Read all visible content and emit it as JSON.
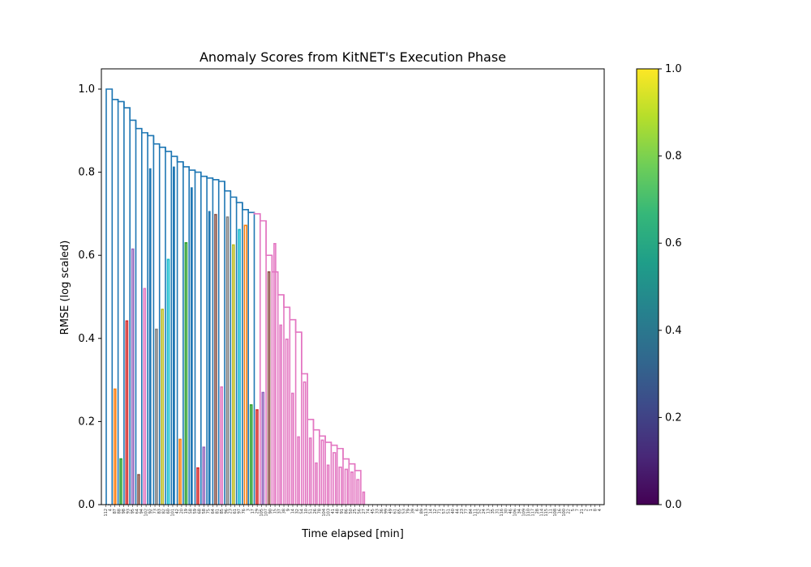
{
  "chart_data": {
    "type": "dendrogram",
    "title": "Anomaly Scores from KitNET's Execution Phase",
    "xlabel": "Time elapsed [min]",
    "ylabel": "RMSE (log scaled)",
    "ylim": [
      0,
      1.05
    ],
    "yticks": [
      "0.0",
      "0.2",
      "0.4",
      "0.6",
      "0.8",
      "1.0"
    ],
    "xtick_labels": [
      "112",
      "4",
      "87",
      "88",
      "98",
      "93",
      "95",
      "64",
      "94",
      "102",
      "92",
      "73",
      "83",
      "82",
      "60",
      "101",
      "42",
      "20",
      "19",
      "58",
      "59",
      "68",
      "58",
      "75",
      "64",
      "81",
      "85",
      "96",
      "23",
      "61",
      "97",
      "76",
      "3",
      "17",
      "29",
      "105",
      "107",
      "90",
      "15",
      "37",
      "38",
      "9",
      "14",
      "32",
      "54",
      "10",
      "51",
      "26",
      "78",
      "104",
      "103",
      "41",
      "48",
      "91",
      "86",
      "50",
      "25",
      "56",
      "27",
      "74",
      "45",
      "33",
      "36",
      "99",
      "49",
      "61",
      "65",
      "53",
      "79",
      "39",
      "6",
      "89",
      "113",
      "14",
      "12",
      "71",
      "57",
      "51",
      "40",
      "44",
      "23",
      "77",
      "84",
      "111",
      "52",
      "24",
      "13",
      "35",
      "31",
      "116",
      "30",
      "46",
      "106",
      "34",
      "109",
      "110",
      "117",
      "28",
      "114",
      "115",
      "11",
      "108",
      "16",
      "100",
      "22",
      "5",
      "7",
      "21",
      "2",
      "1",
      "8",
      "4"
    ],
    "colorbar": {
      "ticks": [
        "0.0",
        "0.2",
        "0.4",
        "0.6",
        "0.8",
        "1.0"
      ],
      "colors": [
        "#440154",
        "#482878",
        "#3e4989",
        "#31688e",
        "#26828e",
        "#1f9e89",
        "#35b779",
        "#6ece58",
        "#b5de2b",
        "#fde725"
      ]
    },
    "colors": {
      "trunk": "#1f77b4",
      "orange": "#ff7f0e",
      "green": "#2ca02c",
      "red": "#d62728",
      "purple": "#9467bd",
      "brown": "#8c564b",
      "pink": "#e377c2",
      "gray": "#7f7f7f",
      "olive": "#bcbd22",
      "cyan": "#17becf"
    },
    "merges": [
      {
        "x1": 0,
        "x2": 1,
        "h": 1.0,
        "c": "trunk"
      },
      {
        "x1": 1,
        "x2": 2,
        "h": 0.975,
        "c": "trunk"
      },
      {
        "x1": 2,
        "x2": 3,
        "h": 0.97,
        "c": "trunk"
      },
      {
        "x1": 3,
        "x2": 4,
        "h": 0.955,
        "c": "trunk"
      },
      {
        "x1": 4,
        "x2": 5,
        "h": 0.925,
        "c": "trunk"
      },
      {
        "x1": 5,
        "x2": 6,
        "h": 0.905,
        "c": "trunk"
      },
      {
        "x1": 6,
        "x2": 7,
        "h": 0.895,
        "c": "trunk"
      },
      {
        "x1": 7,
        "x2": 8,
        "h": 0.888,
        "c": "trunk"
      },
      {
        "x1": 8,
        "x2": 9,
        "h": 0.868,
        "c": "trunk"
      },
      {
        "x1": 9,
        "x2": 10,
        "h": 0.86,
        "c": "trunk"
      },
      {
        "x1": 10,
        "x2": 11,
        "h": 0.85,
        "c": "trunk"
      },
      {
        "x1": 11,
        "x2": 12,
        "h": 0.838,
        "c": "trunk"
      },
      {
        "x1": 12,
        "x2": 13,
        "h": 0.825,
        "c": "trunk"
      },
      {
        "x1": 13,
        "x2": 14,
        "h": 0.813,
        "c": "trunk"
      },
      {
        "x1": 14,
        "x2": 15,
        "h": 0.805,
        "c": "trunk"
      },
      {
        "x1": 15,
        "x2": 16,
        "h": 0.8,
        "c": "trunk"
      },
      {
        "x1": 16,
        "x2": 17,
        "h": 0.79,
        "c": "trunk"
      },
      {
        "x1": 17,
        "x2": 18,
        "h": 0.786,
        "c": "trunk"
      },
      {
        "x1": 18,
        "x2": 19,
        "h": 0.782,
        "c": "trunk"
      },
      {
        "x1": 19,
        "x2": 20,
        "h": 0.778,
        "c": "trunk"
      },
      {
        "x1": 20,
        "x2": 21,
        "h": 0.755,
        "c": "trunk"
      },
      {
        "x1": 21,
        "x2": 22,
        "h": 0.74,
        "c": "trunk"
      },
      {
        "x1": 22,
        "x2": 23,
        "h": 0.727,
        "c": "trunk"
      },
      {
        "x1": 23,
        "x2": 24,
        "h": 0.71,
        "c": "trunk"
      },
      {
        "x1": 24,
        "x2": 25,
        "h": 0.703,
        "c": "trunk"
      },
      {
        "x1": 25,
        "x2": 26,
        "h": 0.7,
        "c": "pink"
      },
      {
        "x1": 26,
        "x2": 27,
        "h": 0.683,
        "c": "pink"
      },
      {
        "x1": 27,
        "x2": 28,
        "h": 0.6,
        "c": "pink"
      },
      {
        "x1": 28,
        "x2": 29,
        "h": 0.56,
        "c": "pink"
      },
      {
        "x1": 29,
        "x2": 30,
        "h": 0.505,
        "c": "pink"
      },
      {
        "x1": 30,
        "x2": 31,
        "h": 0.475,
        "c": "pink"
      },
      {
        "x1": 31,
        "x2": 32,
        "h": 0.445,
        "c": "pink"
      },
      {
        "x1": 32,
        "x2": 33,
        "h": 0.415,
        "c": "pink"
      },
      {
        "x1": 33,
        "x2": 34,
        "h": 0.315,
        "c": "pink"
      },
      {
        "x1": 34,
        "x2": 35,
        "h": 0.205,
        "c": "pink"
      },
      {
        "x1": 35,
        "x2": 36,
        "h": 0.18,
        "c": "pink"
      },
      {
        "x1": 36,
        "x2": 37,
        "h": 0.165,
        "c": "pink"
      },
      {
        "x1": 37,
        "x2": 38,
        "h": 0.15,
        "c": "pink"
      },
      {
        "x1": 38,
        "x2": 39,
        "h": 0.143,
        "c": "pink"
      },
      {
        "x1": 39,
        "x2": 40,
        "h": 0.135,
        "c": "pink"
      },
      {
        "x1": 40,
        "x2": 41,
        "h": 0.11,
        "c": "pink"
      },
      {
        "x1": 41,
        "x2": 42,
        "h": 0.098,
        "c": "pink"
      },
      {
        "x1": 42,
        "x2": 43,
        "h": 0.082,
        "c": "pink"
      }
    ],
    "leaves": [
      {
        "x": 0,
        "w": 0.3,
        "h": 0.0,
        "c": "trunk"
      },
      {
        "x": 1,
        "w": 0.5,
        "h": 0.278,
        "c": "orange"
      },
      {
        "x": 2,
        "w": 0.5,
        "h": 0.11,
        "c": "green"
      },
      {
        "x": 3,
        "w": 0.5,
        "h": 0.442,
        "c": "red"
      },
      {
        "x": 4,
        "w": 0.5,
        "h": 0.615,
        "c": "purple"
      },
      {
        "x": 5,
        "w": 0.5,
        "h": 0.072,
        "c": "brown"
      },
      {
        "x": 6,
        "w": 0.5,
        "h": 0.52,
        "c": "pink"
      },
      {
        "x": 7,
        "w": 0.3,
        "h": 0.808,
        "c": "trunk"
      },
      {
        "x": 8,
        "w": 0.5,
        "h": 0.422,
        "c": "gray"
      },
      {
        "x": 9,
        "w": 0.5,
        "h": 0.47,
        "c": "olive"
      },
      {
        "x": 10,
        "w": 0.5,
        "h": 0.59,
        "c": "cyan"
      },
      {
        "x": 11,
        "w": 0.3,
        "h": 0.812,
        "c": "trunk"
      },
      {
        "x": 12,
        "w": 0.5,
        "h": 0.157,
        "c": "orange"
      },
      {
        "x": 13,
        "w": 0.5,
        "h": 0.63,
        "c": "green"
      },
      {
        "x": 14,
        "w": 0.3,
        "h": 0.762,
        "c": "trunk"
      },
      {
        "x": 15,
        "w": 0.5,
        "h": 0.088,
        "c": "red"
      },
      {
        "x": 16,
        "w": 0.5,
        "h": 0.138,
        "c": "purple"
      },
      {
        "x": 17,
        "w": 0.3,
        "h": 0.705,
        "c": "trunk"
      },
      {
        "x": 18,
        "w": 0.5,
        "h": 0.698,
        "c": "brown"
      },
      {
        "x": 19,
        "w": 0.5,
        "h": 0.283,
        "c": "pink"
      },
      {
        "x": 20,
        "w": 0.5,
        "h": 0.692,
        "c": "gray"
      },
      {
        "x": 21,
        "w": 0.5,
        "h": 0.625,
        "c": "olive"
      },
      {
        "x": 22,
        "w": 0.5,
        "h": 0.662,
        "c": "cyan"
      },
      {
        "x": 23,
        "w": 0.7,
        "h": 0.672,
        "c": "orange"
      },
      {
        "x": 24,
        "w": 0.5,
        "h": 0.24,
        "c": "green"
      },
      {
        "x": 25,
        "w": 0.5,
        "h": 0.228,
        "c": "red"
      },
      {
        "x": 26,
        "w": 0.5,
        "h": 0.27,
        "c": "purple"
      },
      {
        "x": 27,
        "w": 0.5,
        "h": 0.56,
        "c": "brown"
      },
      {
        "x": 28,
        "w": 0.5,
        "h": 0.628,
        "c": "pink"
      },
      {
        "x": 29,
        "w": 0.5,
        "h": 0.432,
        "c": "pink"
      },
      {
        "x": 30,
        "w": 0.6,
        "h": 0.398,
        "c": "pink"
      },
      {
        "x": 31,
        "w": 0.5,
        "h": 0.268,
        "c": "pink"
      },
      {
        "x": 32,
        "w": 0.5,
        "h": 0.163,
        "c": "pink"
      },
      {
        "x": 33,
        "w": 0.6,
        "h": 0.295,
        "c": "pink"
      },
      {
        "x": 34,
        "w": 0.5,
        "h": 0.16,
        "c": "pink"
      },
      {
        "x": 35,
        "w": 0.5,
        "h": 0.1,
        "c": "pink"
      },
      {
        "x": 36,
        "w": 0.6,
        "h": 0.155,
        "c": "pink"
      },
      {
        "x": 37,
        "w": 0.5,
        "h": 0.095,
        "c": "pink"
      },
      {
        "x": 38,
        "w": 0.7,
        "h": 0.125,
        "c": "pink"
      },
      {
        "x": 39,
        "w": 0.7,
        "h": 0.09,
        "c": "pink"
      },
      {
        "x": 40,
        "w": 0.7,
        "h": 0.085,
        "c": "pink"
      },
      {
        "x": 41,
        "w": 0.6,
        "h": 0.078,
        "c": "pink"
      },
      {
        "x": 42,
        "w": 0.6,
        "h": 0.06,
        "c": "pink"
      },
      {
        "x": 43,
        "w": 0.5,
        "h": 0.03,
        "c": "pink"
      }
    ]
  }
}
